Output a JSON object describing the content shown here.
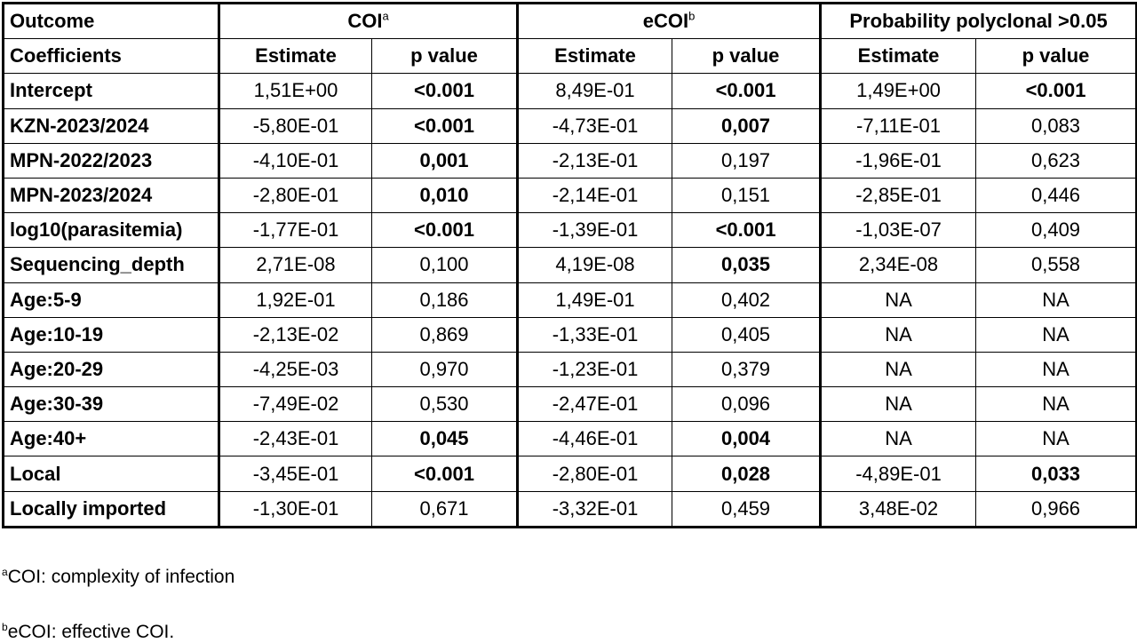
{
  "header": {
    "outcome": "Outcome",
    "coi": "COI",
    "coi_sup": "a",
    "ecoi": "eCOI",
    "ecoi_sup": "b",
    "prob": "Probability polyclonal >0.05",
    "coefficients": "Coefficients",
    "estimate": "Estimate",
    "pvalue": "p value"
  },
  "rows": [
    {
      "label": "Intercept",
      "c1": "1,51E+00",
      "p1": "<0.001",
      "c2": "8,49E-01",
      "p2": "<0.001",
      "c3": "1,49E+00",
      "p3": "<0.001"
    },
    {
      "label": "KZN-2023/2024",
      "c1": "-5,80E-01",
      "p1": "<0.001",
      "c2": "-4,73E-01",
      "p2": "0,007",
      "c3": "-7,11E-01",
      "p3": "0,083"
    },
    {
      "label": "MPN-2022/2023",
      "c1": "-4,10E-01",
      "p1": "0,001",
      "c2": "-2,13E-01",
      "p2": "0,197",
      "c3": "-1,96E-01",
      "p3": "0,623"
    },
    {
      "label": "MPN-2023/2024",
      "c1": "-2,80E-01",
      "p1": "0,010",
      "c2": "-2,14E-01",
      "p2": "0,151",
      "c3": "-2,85E-01",
      "p3": "0,446"
    },
    {
      "label": "log10(parasitemia)",
      "c1": "-1,77E-01",
      "p1": "<0.001",
      "c2": "-1,39E-01",
      "p2": "<0.001",
      "c3": "-1,03E-07",
      "p3": "0,409"
    },
    {
      "label": "Sequencing_depth",
      "c1": "2,71E-08",
      "p1": "0,100",
      "c2": "4,19E-08",
      "p2": "0,035",
      "c3": "2,34E-08",
      "p3": "0,558"
    },
    {
      "label": "Age:5-9",
      "c1": "1,92E-01",
      "p1": "0,186",
      "c2": "1,49E-01",
      "p2": "0,402",
      "c3": "NA",
      "p3": "NA"
    },
    {
      "label": "Age:10-19",
      "c1": "-2,13E-02",
      "p1": "0,869",
      "c2": "-1,33E-01",
      "p2": "0,405",
      "c3": "NA",
      "p3": "NA"
    },
    {
      "label": "Age:20-29",
      "c1": "-4,25E-03",
      "p1": "0,970",
      "c2": "-1,23E-01",
      "p2": "0,379",
      "c3": "NA",
      "p3": "NA"
    },
    {
      "label": "Age:30-39",
      "c1": "-7,49E-02",
      "p1": "0,530",
      "c2": "-2,47E-01",
      "p2": "0,096",
      "c3": "NA",
      "p3": "NA"
    },
    {
      "label": "Age:40+",
      "c1": "-2,43E-01",
      "p1": "0,045",
      "c2": "-4,46E-01",
      "p2": "0,004",
      "c3": "NA",
      "p3": "NA"
    },
    {
      "label": "Local",
      "c1": "-3,45E-01",
      "p1": "<0.001",
      "c2": "-2,80E-01",
      "p2": "0,028",
      "c3": "-4,89E-01",
      "p3": "0,033"
    },
    {
      "label": "Locally imported",
      "c1": "-1,30E-01",
      "p1": "0,671",
      "c2": "-3,32E-01",
      "p2": "0,459",
      "c3": "3,48E-02",
      "p3": "0,966"
    }
  ],
  "footnotes": {
    "a_mark": "a",
    "a_text": "COI: complexity of infection",
    "b_mark": "b",
    "b_text": "eCOI: effective COI."
  }
}
